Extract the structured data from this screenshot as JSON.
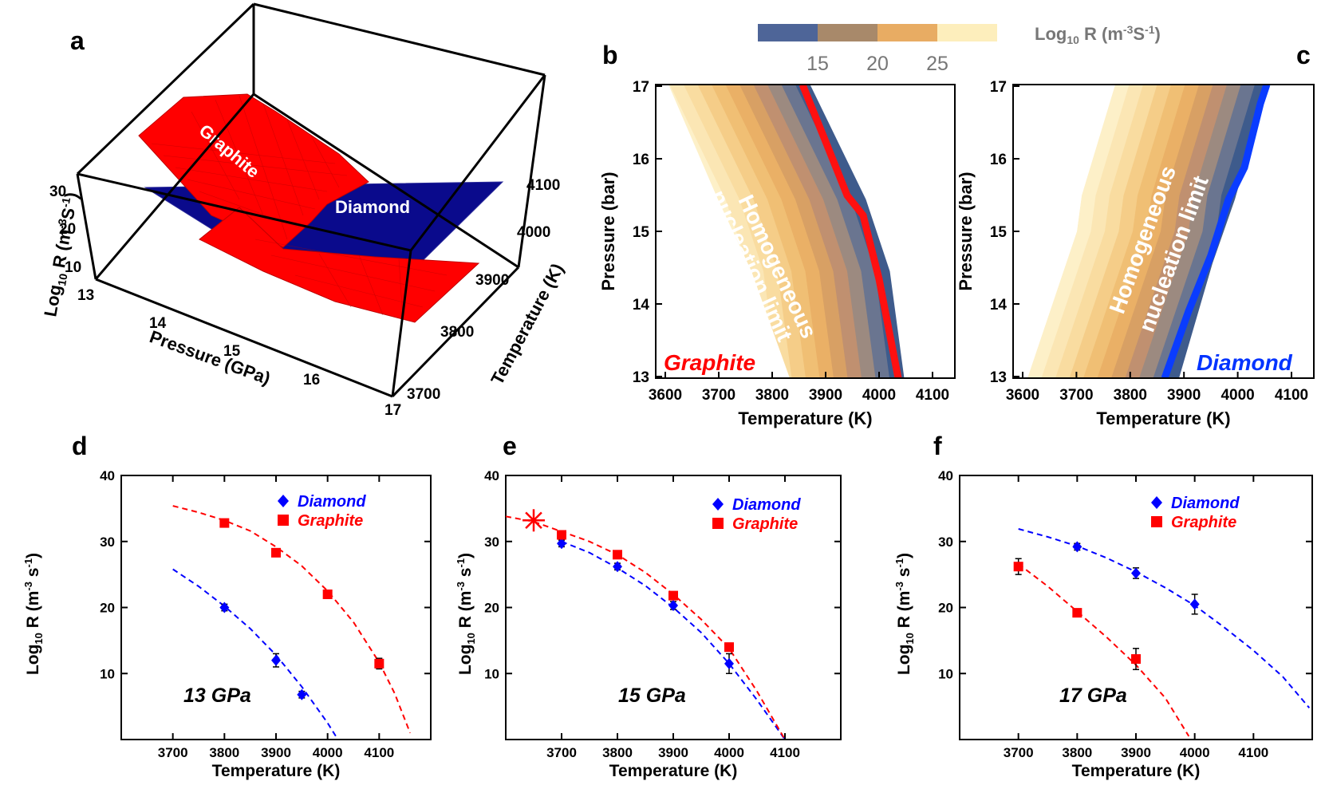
{
  "panels": {
    "a": {
      "label": "a",
      "zlabel_main": "Log",
      "zlabel_sub": "10",
      "zlabel_rest": " R (m",
      "zlabel_sup": "-3",
      "zlabel_s": "S",
      "zlabel_sup2": "-1",
      "zlabel_end": ")",
      "xlabel": "Pressure (GPa)",
      "ylabel": "Temperature (K)",
      "z_ticks": [
        "30",
        "20",
        "10"
      ],
      "x_ticks": [
        "13",
        "14",
        "15",
        "16",
        "17"
      ],
      "y_ticks": [
        "4100",
        "4000",
        "3900",
        "3800",
        "3700"
      ],
      "surface_labels": [
        "Graphite",
        "Diamond"
      ]
    },
    "b": {
      "label": "b",
      "annotation": "Graphite",
      "limit_line1": "Homogeneous",
      "limit_line2": "nucleation limit"
    },
    "c": {
      "label": "c",
      "annotation": "Diamond",
      "limit_line1": "Homogeneous",
      "limit_line2": "nucleation limit"
    },
    "bc_shared": {
      "xlabel": "Temperature (K)",
      "ylabel": "Pressure (bar)",
      "x_ticks": [
        "3600",
        "3700",
        "3800",
        "3900",
        "4000",
        "4100"
      ],
      "y_ticks": [
        "17",
        "16",
        "15",
        "14",
        "13"
      ]
    },
    "colorbar": {
      "label_main": "Log",
      "label_sub": "10",
      "label_rest": " R (m",
      "label_sup": "-3",
      "label_s": "S",
      "label_sup2": "-1",
      "label_end": ")",
      "ticks": [
        "15",
        "20",
        "25"
      ],
      "colors": [
        "#4e6598",
        "#a8896a",
        "#e8ac63",
        "#fdeebc"
      ]
    }
  },
  "chart_data": [
    {
      "panel": "d",
      "type": "scatter",
      "annotation": "13 GPa",
      "xlabel": "Temperature (K)",
      "xlim": [
        3600,
        4200
      ],
      "ylim": [
        0,
        40
      ],
      "x_ticks": [
        3700,
        3800,
        3900,
        4000,
        4100
      ],
      "y_ticks": [
        10,
        20,
        30,
        40
      ],
      "series": [
        {
          "name": "Diamond",
          "color": "#0000ff",
          "marker": "diamond",
          "points": [
            {
              "x": 3800,
              "y": 20,
              "err": 0.5
            },
            {
              "x": 3900,
              "y": 12,
              "err": 1
            },
            {
              "x": 3950,
              "y": 6.8,
              "err": 0.5
            }
          ],
          "fit": [
            [
              3700,
              25.8
            ],
            [
              3750,
              23.2
            ],
            [
              3800,
              20.2
            ],
            [
              3850,
              16.8
            ],
            [
              3900,
              12.8
            ],
            [
              3950,
              8.0
            ],
            [
              4000,
              2.5
            ],
            [
              4020,
              0
            ]
          ]
        },
        {
          "name": "Graphite",
          "color": "#ff0000",
          "marker": "square",
          "points": [
            {
              "x": 3800,
              "y": 32.8,
              "err": 0.5
            },
            {
              "x": 3900,
              "y": 28.3,
              "err": 0.6
            },
            {
              "x": 4000,
              "y": 22,
              "err": 0.6
            },
            {
              "x": 4100,
              "y": 11.5,
              "err": 0.8
            }
          ],
          "fit": [
            [
              3700,
              35.4
            ],
            [
              3750,
              34.4
            ],
            [
              3800,
              33.2
            ],
            [
              3850,
              31.6
            ],
            [
              3900,
              29.2
            ],
            [
              3950,
              26.3
            ],
            [
              4000,
              22.5
            ],
            [
              4050,
              17.8
            ],
            [
              4100,
              11.7
            ],
            [
              4130,
              7
            ],
            [
              4160,
              1
            ]
          ]
        }
      ]
    },
    {
      "panel": "e",
      "type": "scatter",
      "annotation": "15 GPa",
      "xlabel": "Temperature (K)",
      "xlim": [
        3600,
        4200
      ],
      "ylim": [
        0,
        40
      ],
      "x_ticks": [
        3700,
        3800,
        3900,
        4000,
        4100
      ],
      "y_ticks": [
        10,
        20,
        30,
        40
      ],
      "series": [
        {
          "name": "Diamond",
          "color": "#0000ff",
          "marker": "diamond",
          "points": [
            {
              "x": 3700,
              "y": 29.7,
              "err": 0.5
            },
            {
              "x": 3800,
              "y": 26.2,
              "err": 0.5
            },
            {
              "x": 3900,
              "y": 20.3,
              "err": 0.6
            },
            {
              "x": 4000,
              "y": 11.5,
              "err": 1.5
            }
          ],
          "fit": [
            [
              3700,
              30.0
            ],
            [
              3750,
              28.3
            ],
            [
              3800,
              26.0
            ],
            [
              3850,
              23.3
            ],
            [
              3900,
              20.0
            ],
            [
              3950,
              16.2
            ],
            [
              4000,
              11.5
            ],
            [
              4050,
              6.0
            ],
            [
              4100,
              0
            ]
          ]
        },
        {
          "name": "Graphite",
          "color": "#ff0000",
          "marker": "square",
          "points": [
            {
              "x": 3700,
              "y": 31,
              "err": 0.5
            },
            {
              "x": 3800,
              "y": 28,
              "err": 0.5
            },
            {
              "x": 3900,
              "y": 21.8,
              "err": 0.5
            },
            {
              "x": 4000,
              "y": 14,
              "err": 0.6
            }
          ],
          "fit": [
            [
              3600,
              33.8
            ],
            [
              3650,
              33.0
            ],
            [
              3700,
              31.5
            ],
            [
              3750,
              30.0
            ],
            [
              3800,
              28.0
            ],
            [
              3850,
              25.3
            ],
            [
              3900,
              22.0
            ],
            [
              3950,
              18.2
            ],
            [
              4000,
              13.8
            ],
            [
              4050,
              7.3
            ],
            [
              4100,
              0
            ]
          ]
        }
      ],
      "star": {
        "x": 3650,
        "y": 33.2
      }
    },
    {
      "panel": "f",
      "type": "scatter",
      "annotation": "17 GPa",
      "xlabel": "Temperature (K)",
      "xlim": [
        3600,
        4200
      ],
      "ylim": [
        0,
        40
      ],
      "x_ticks": [
        3700,
        3800,
        3900,
        4000,
        4100
      ],
      "y_ticks": [
        10,
        20,
        30,
        40
      ],
      "series": [
        {
          "name": "Diamond",
          "color": "#0000ff",
          "marker": "diamond",
          "points": [
            {
              "x": 3800,
              "y": 29.2,
              "err": 0.5
            },
            {
              "x": 3900,
              "y": 25.2,
              "err": 0.8
            },
            {
              "x": 4000,
              "y": 20.5,
              "err": 1.5
            }
          ],
          "fit": [
            [
              3700,
              31.9
            ],
            [
              3750,
              30.7
            ],
            [
              3800,
              29.3
            ],
            [
              3850,
              27.5
            ],
            [
              3900,
              25.4
            ],
            [
              3950,
              23.0
            ],
            [
              4000,
              20.3
            ],
            [
              4050,
              17.0
            ],
            [
              4100,
              13.5
            ],
            [
              4150,
              9.5
            ],
            [
              4195,
              4.8
            ]
          ]
        },
        {
          "name": "Graphite",
          "color": "#ff0000",
          "marker": "square",
          "points": [
            {
              "x": 3700,
              "y": 26.2,
              "err": 1.2
            },
            {
              "x": 3800,
              "y": 19.2,
              "err": 0.5
            },
            {
              "x": 3900,
              "y": 12.2,
              "err": 1.6
            }
          ],
          "fit": [
            [
              3700,
              26.6
            ],
            [
              3750,
              23.2
            ],
            [
              3800,
              19.4
            ],
            [
              3850,
              15.5
            ],
            [
              3900,
              11.3
            ],
            [
              3950,
              6.3
            ],
            [
              3990,
              0.5
            ]
          ]
        }
      ]
    }
  ]
}
